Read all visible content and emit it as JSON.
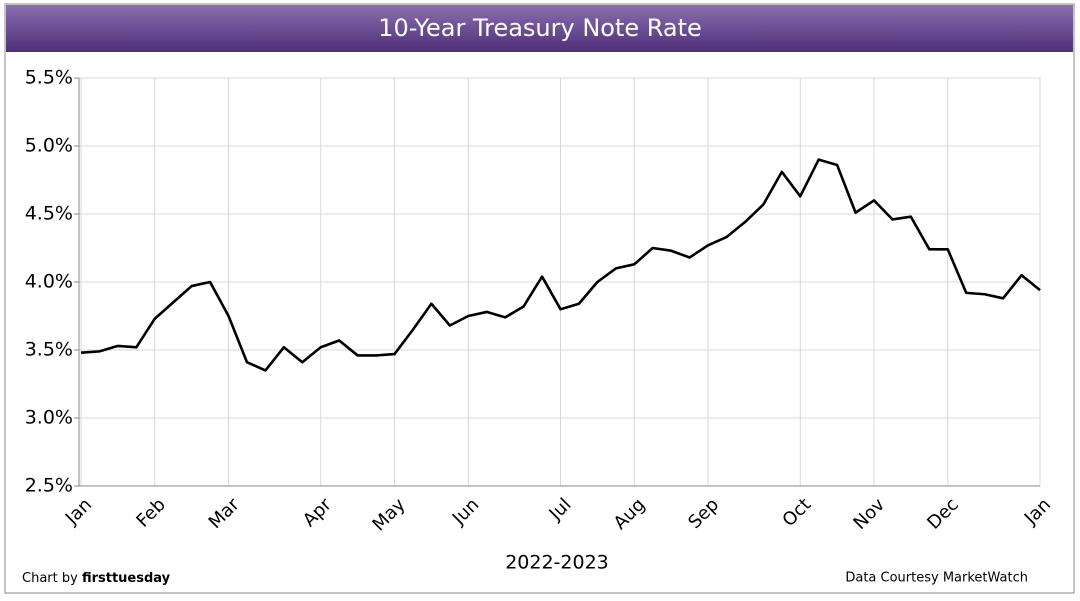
{
  "chart_data": {
    "type": "line",
    "title": "10-Year Treasury Note Rate",
    "x_label": "2022-2023",
    "annotations": [
      "Chart by",
      "firsttuesday",
      "Data Courtesy MarketWatch"
    ],
    "categories": [
      "Jan",
      null,
      null,
      null,
      "Feb",
      null,
      null,
      null,
      "Mar",
      null,
      null,
      null,
      null,
      "Apr",
      null,
      null,
      null,
      "May",
      null,
      null,
      null,
      "Jun",
      null,
      null,
      null,
      null,
      "Jul",
      null,
      null,
      null,
      "Aug",
      null,
      null,
      null,
      "Sep",
      null,
      null,
      null,
      null,
      "Oct",
      null,
      null,
      null,
      "Nov",
      null,
      null,
      null,
      "Dec",
      null,
      null,
      null,
      null,
      "Jan"
    ],
    "series": [
      {
        "name": "10-Year Treasury Note Rate",
        "color": "#000000",
        "values": [
          3.48,
          3.49,
          3.53,
          3.52,
          3.73,
          3.85,
          3.97,
          4.0,
          3.75,
          3.41,
          3.35,
          3.52,
          3.41,
          3.52,
          3.57,
          3.46,
          3.46,
          3.47,
          3.65,
          3.84,
          3.68,
          3.75,
          3.78,
          3.74,
          3.82,
          4.04,
          3.8,
          3.84,
          4.0,
          4.1,
          4.13,
          4.25,
          4.23,
          4.18,
          4.27,
          4.33,
          4.44,
          4.57,
          4.81,
          4.63,
          4.9,
          4.86,
          4.51,
          4.6,
          4.46,
          4.48,
          4.24,
          4.24,
          3.92,
          3.91,
          3.88,
          4.05,
          3.94
        ]
      }
    ],
    "ylim": [
      2.5,
      5.5
    ],
    "yticks": [
      {
        "value": 2.5,
        "label": "2.5%"
      },
      {
        "value": 3.0,
        "label": "3.0%"
      },
      {
        "value": 3.5,
        "label": "3.5%"
      },
      {
        "value": 4.0,
        "label": "4.0%"
      },
      {
        "value": 4.5,
        "label": "4.5%"
      },
      {
        "value": 5.0,
        "label": "5.0%"
      },
      {
        "value": 5.5,
        "label": "5.5%"
      }
    ],
    "grid": true
  }
}
